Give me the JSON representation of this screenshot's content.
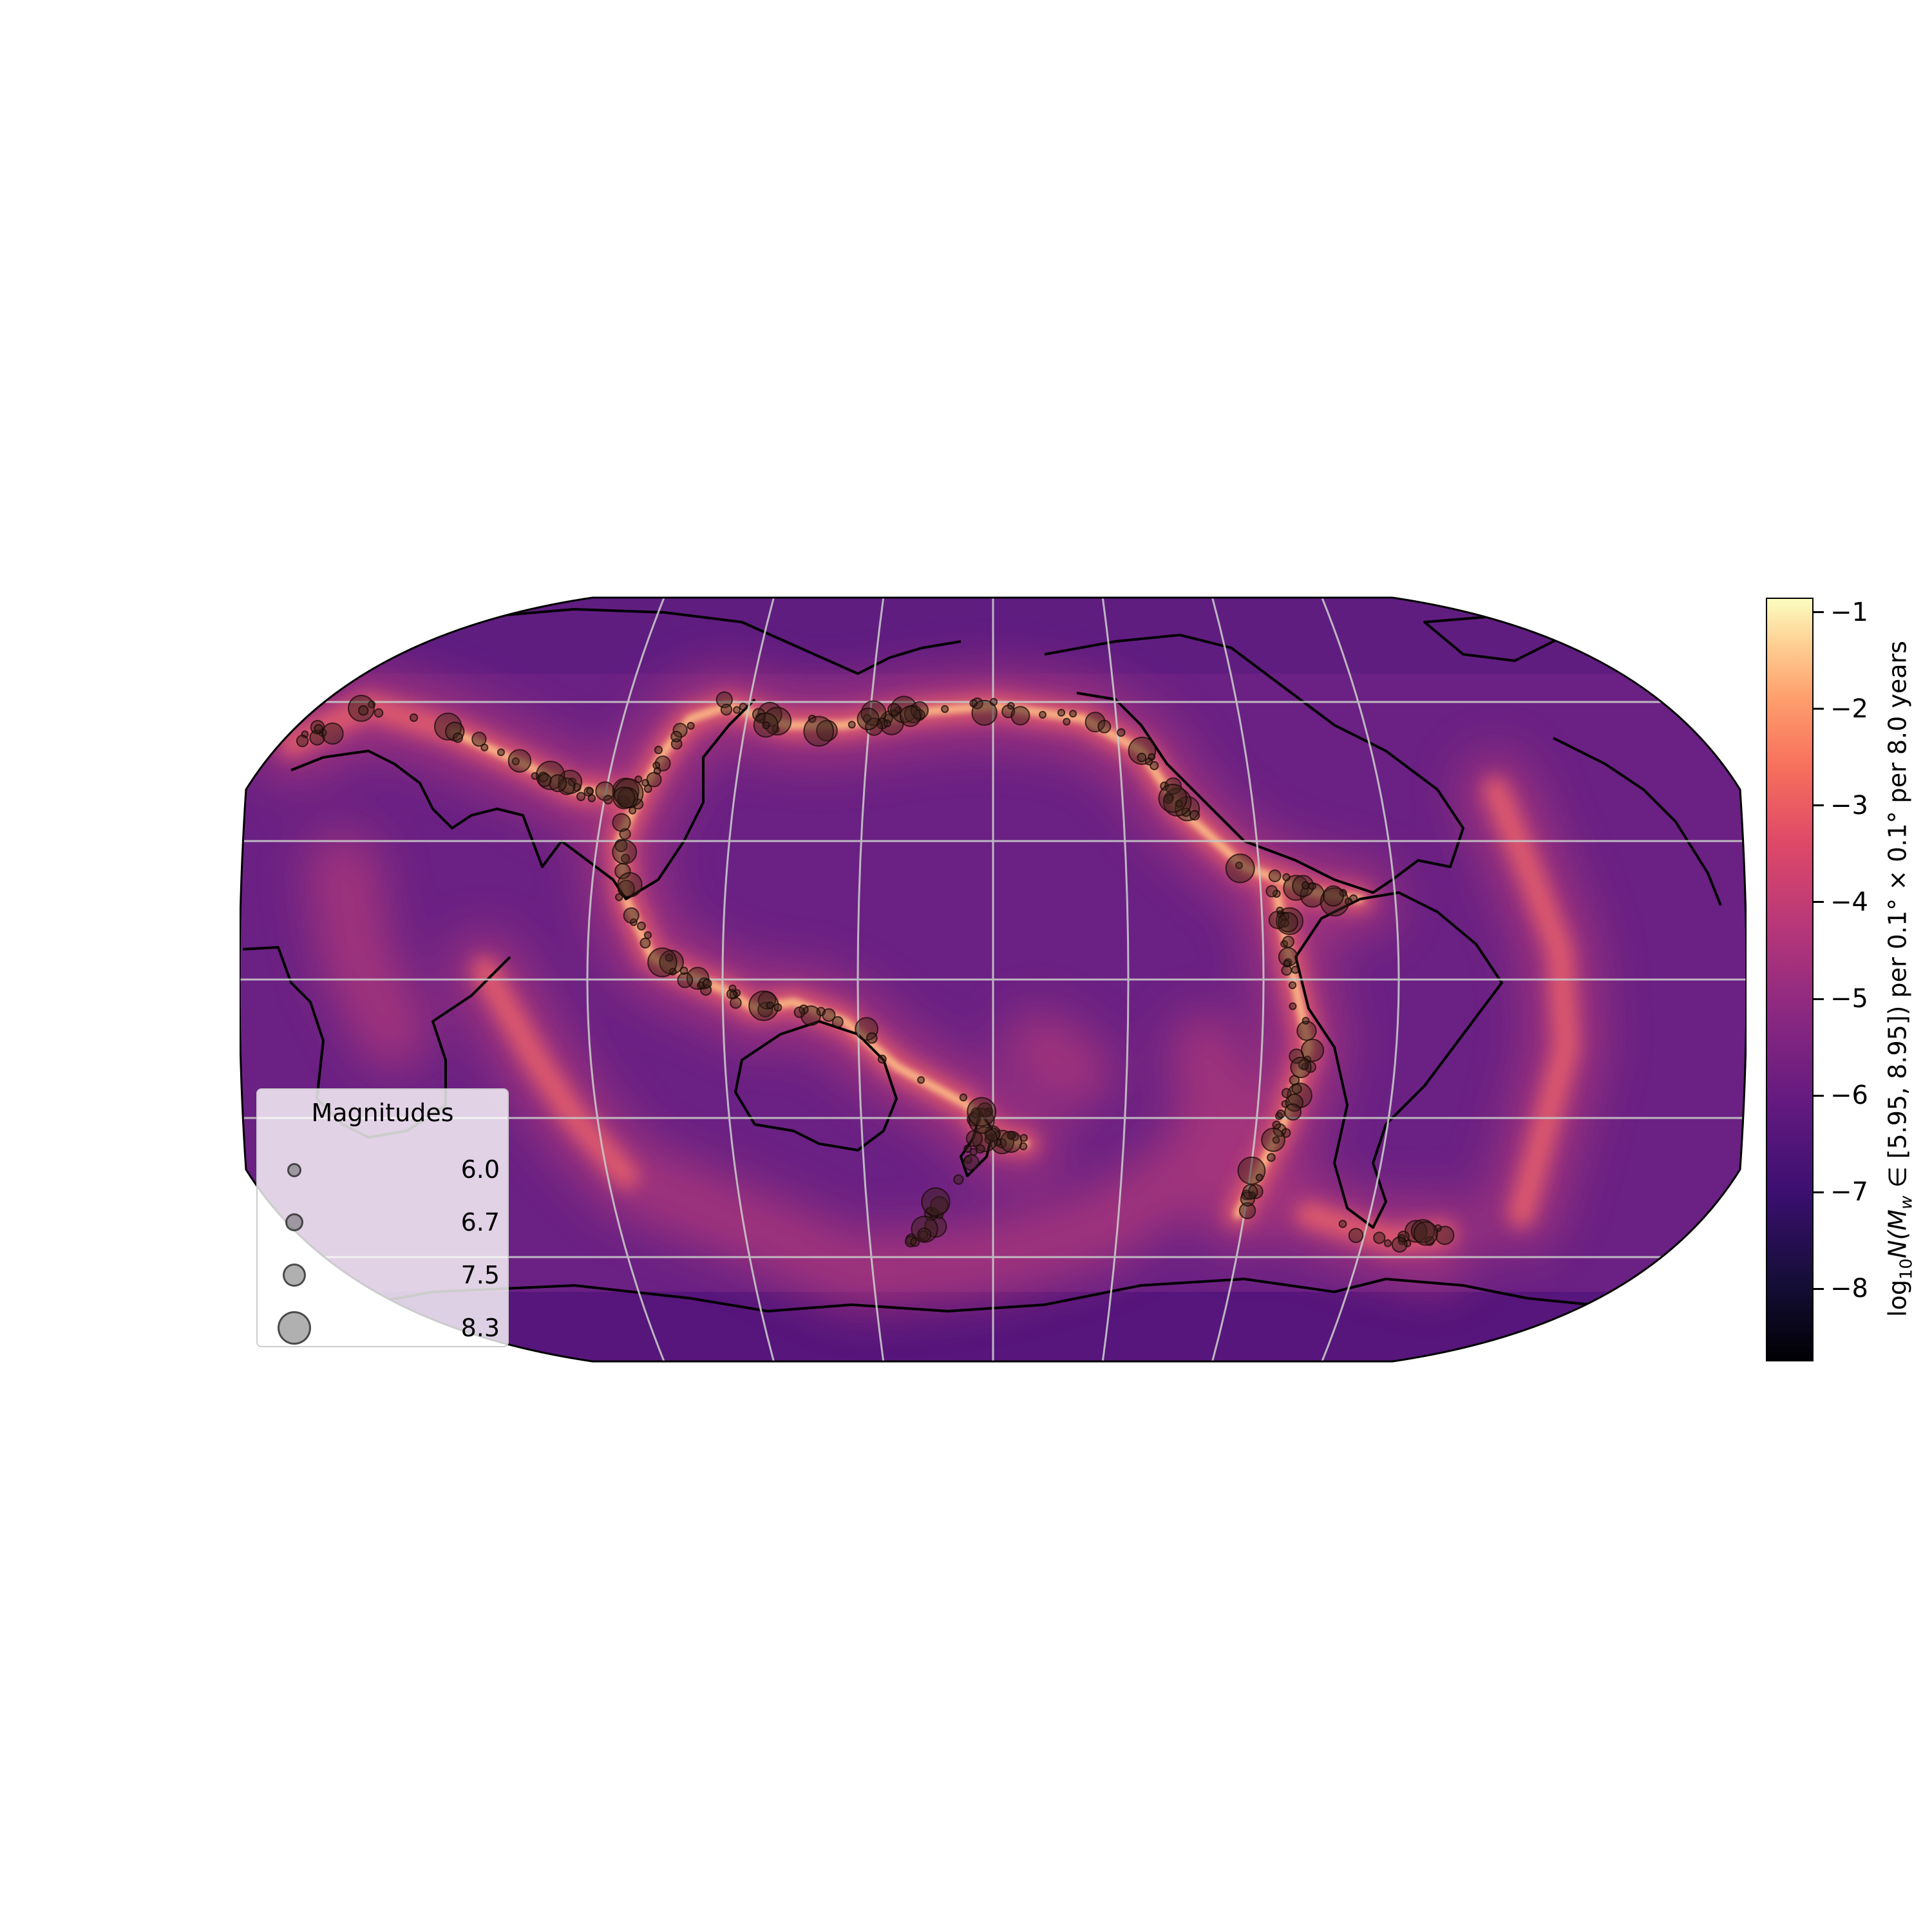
{
  "colorbar": {
    "label": "log₁₀N(M_w ∈ [5.95, 8.95]) per 0.1° × 0.1° per 8.0 years",
    "label_prefix": "log",
    "label_sub": "10",
    "label_main": "N(M",
    "label_sub_w": "w",
    "label_rest": " ∈ [5.95, 8.95]) per 0.1° × 0.1°  per 8.0 years",
    "ticks": [
      "−1",
      "−2",
      "−3",
      "−4",
      "−5",
      "−6",
      "−7",
      "−8"
    ],
    "tick_values": [
      -1,
      -2,
      -3,
      -4,
      -5,
      -6,
      -7,
      -8
    ],
    "range": [
      -8.75,
      -0.85
    ],
    "colormap": "magma"
  },
  "legend": {
    "title": "Magnitudes",
    "entries": [
      {
        "label": "6.0",
        "magnitude": 6.0
      },
      {
        "label": "6.7",
        "magnitude": 6.7
      },
      {
        "label": "7.5",
        "magnitude": 7.5
      },
      {
        "label": "8.3",
        "magnitude": 8.3
      }
    ]
  },
  "map": {
    "projection": "Robinson",
    "central_longitude": 180,
    "gridlines": true,
    "coastlines": true,
    "colors": {
      "background": "#6a2183",
      "belt_glow": "#e8606a",
      "belt_core": "#fec287",
      "marker_fill": "#3a1f1a",
      "gridline": "#c8c8c8"
    }
  }
}
